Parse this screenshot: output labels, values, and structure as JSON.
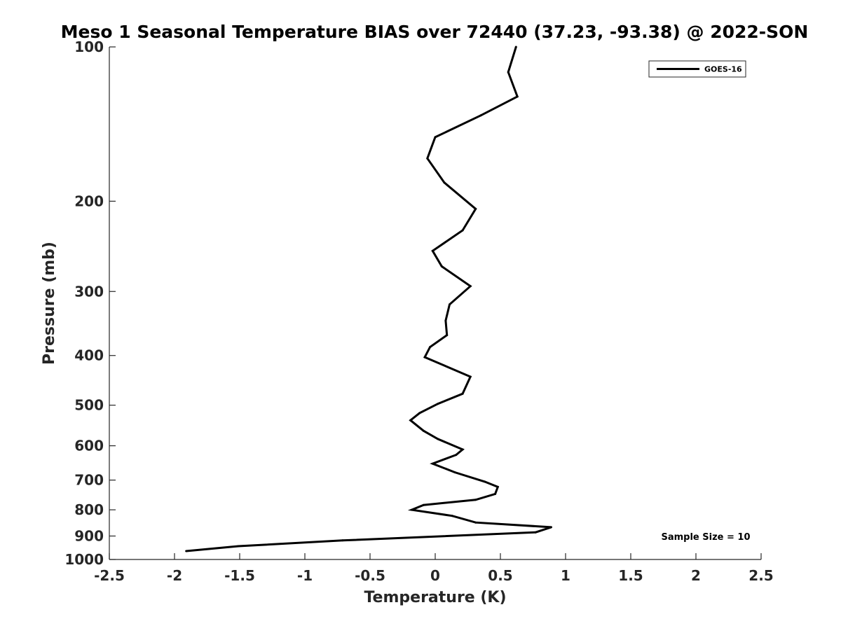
{
  "chart_data": {
    "type": "line",
    "title": "Meso 1 Seasonal Temperature BIAS over 72440 (37.23, -93.38) @ 2022-SON",
    "xlabel": "Temperature (K)",
    "ylabel": "Pressure (mb)",
    "xlim": [
      -2.5,
      2.5
    ],
    "ylim": [
      100,
      1000
    ],
    "y_scale": "log",
    "y_reversed": true,
    "x_ticks": [
      -2.5,
      -2,
      -1.5,
      -1,
      -0.5,
      0,
      0.5,
      1,
      1.5,
      2,
      2.5
    ],
    "x_tick_labels": [
      "-2.5",
      "-2",
      "-1.5",
      "-1",
      "-0.5",
      "0",
      "0.5",
      "1",
      "1.5",
      "2",
      "2.5"
    ],
    "y_ticks": [
      100,
      200,
      300,
      400,
      500,
      600,
      700,
      800,
      900,
      1000
    ],
    "y_tick_labels": [
      "100",
      "200",
      "300",
      "400",
      "500",
      "600",
      "700",
      "800",
      "900",
      "1000"
    ],
    "grid": false,
    "legend_position": "top-right",
    "line_color": "#000000",
    "series": [
      {
        "name": "GOES-16",
        "x": [
          0.62,
          0.56,
          0.63,
          0.35,
          0.0,
          -0.06,
          0.07,
          0.31,
          0.21,
          -0.02,
          0.05,
          0.27,
          0.11,
          0.08,
          0.09,
          -0.04,
          -0.08,
          0.27,
          0.21,
          0.02,
          -0.12,
          -0.19,
          -0.09,
          0.02,
          0.21,
          0.16,
          -0.02,
          0.15,
          0.38,
          0.48,
          0.46,
          0.31,
          -0.09,
          -0.18,
          0.13,
          0.31,
          0.89,
          0.77,
          -0.71,
          -1.51,
          -1.91
        ],
        "y": [
          100,
          112,
          125,
          136,
          150,
          165,
          184,
          207,
          228,
          250,
          268,
          293,
          318,
          342,
          365,
          385,
          403,
          440,
          475,
          497,
          518,
          535,
          561,
          582,
          610,
          625,
          650,
          676,
          705,
          722,
          745,
          765,
          783,
          800,
          822,
          847,
          865,
          885,
          918,
          942,
          963
        ]
      }
    ],
    "annotation": "Sample Size = 10"
  }
}
